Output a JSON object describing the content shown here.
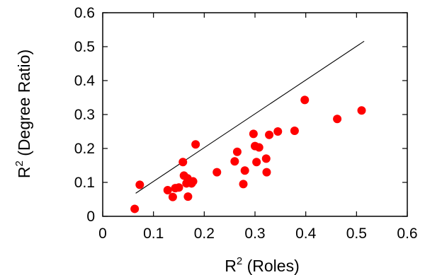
{
  "chart_data": {
    "type": "scatter",
    "title": "",
    "xlabel": {
      "base": "R",
      "sup": "2",
      "rest": " (Roles)"
    },
    "ylabel": {
      "base": "R",
      "sup": "2",
      "rest": " (Degree Ratio)"
    },
    "xlim": [
      0,
      0.6
    ],
    "ylim": [
      0,
      0.6
    ],
    "xticks": [
      "0",
      "0.1",
      "0.2",
      "0.3",
      "0.4",
      "0.5",
      "0.6"
    ],
    "yticks": [
      "0",
      "0.1",
      "0.2",
      "0.3",
      "0.4",
      "0.5",
      "0.6"
    ],
    "grid": false,
    "legend": "none",
    "marker_color": "#ff0000",
    "line_color": "#000000",
    "line": {
      "x": [
        0.065,
        0.515
      ],
      "y": [
        0.068,
        0.516
      ]
    },
    "points": [
      {
        "x": 0.063,
        "y": 0.022
      },
      {
        "x": 0.073,
        "y": 0.093
      },
      {
        "x": 0.128,
        "y": 0.077
      },
      {
        "x": 0.138,
        "y": 0.057
      },
      {
        "x": 0.143,
        "y": 0.083
      },
      {
        "x": 0.15,
        "y": 0.085
      },
      {
        "x": 0.158,
        "y": 0.16
      },
      {
        "x": 0.16,
        "y": 0.12
      },
      {
        "x": 0.165,
        "y": 0.097
      },
      {
        "x": 0.167,
        "y": 0.112
      },
      {
        "x": 0.168,
        "y": 0.058
      },
      {
        "x": 0.175,
        "y": 0.097
      },
      {
        "x": 0.178,
        "y": 0.103
      },
      {
        "x": 0.183,
        "y": 0.212
      },
      {
        "x": 0.225,
        "y": 0.13
      },
      {
        "x": 0.26,
        "y": 0.162
      },
      {
        "x": 0.265,
        "y": 0.19
      },
      {
        "x": 0.277,
        "y": 0.095
      },
      {
        "x": 0.28,
        "y": 0.135
      },
      {
        "x": 0.297,
        "y": 0.243
      },
      {
        "x": 0.3,
        "y": 0.207
      },
      {
        "x": 0.303,
        "y": 0.16
      },
      {
        "x": 0.308,
        "y": 0.203
      },
      {
        "x": 0.322,
        "y": 0.17
      },
      {
        "x": 0.323,
        "y": 0.13
      },
      {
        "x": 0.328,
        "y": 0.24
      },
      {
        "x": 0.345,
        "y": 0.25
      },
      {
        "x": 0.378,
        "y": 0.252
      },
      {
        "x": 0.398,
        "y": 0.343
      },
      {
        "x": 0.462,
        "y": 0.287
      },
      {
        "x": 0.51,
        "y": 0.312
      }
    ]
  }
}
